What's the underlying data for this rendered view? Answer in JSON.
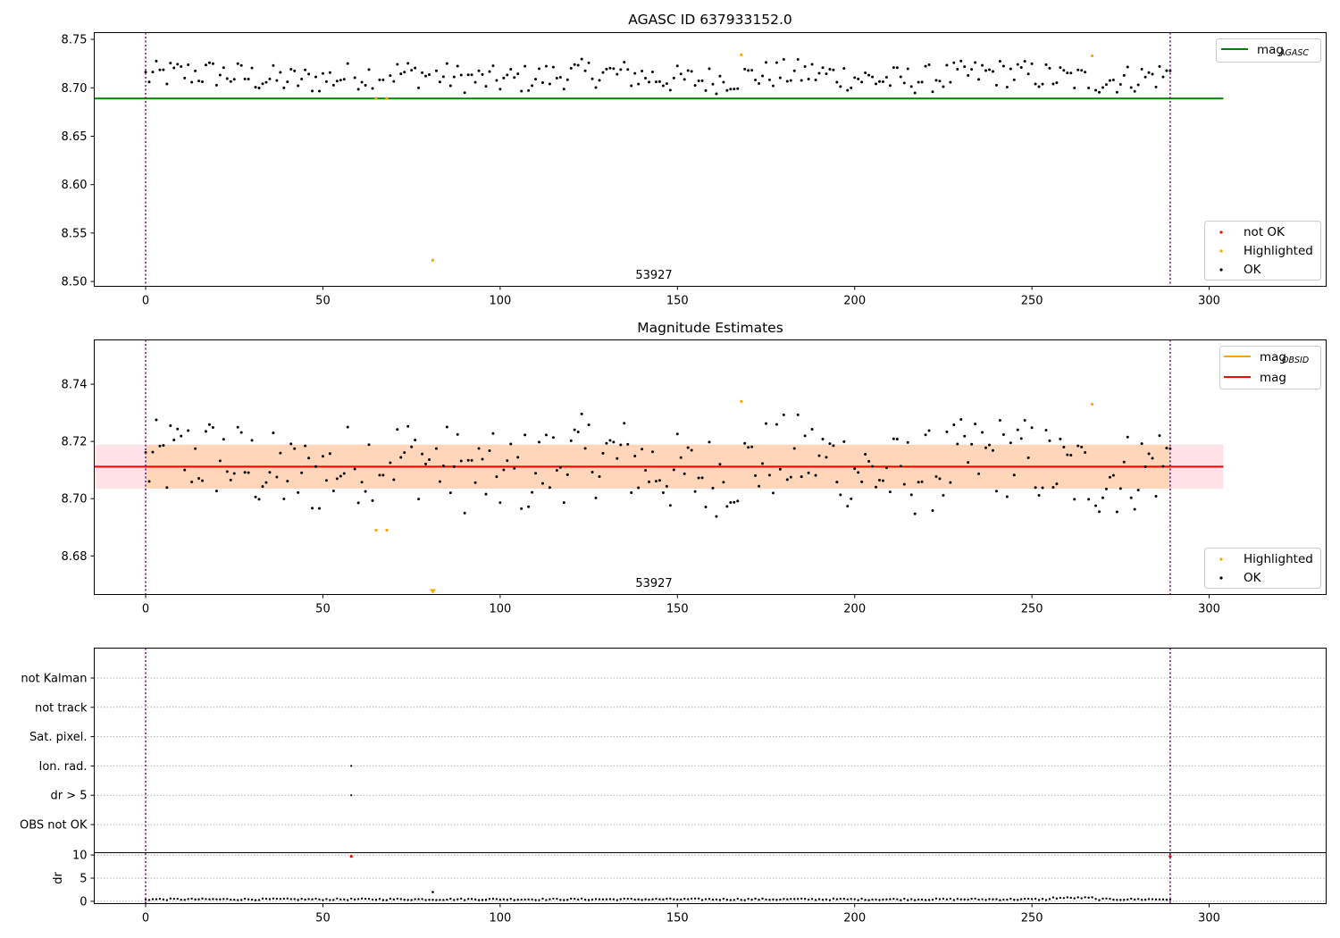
{
  "chart_data": [
    {
      "type": "scatter",
      "title": "AGASC ID 637933152.0",
      "annotation": "53927",
      "xlim": [
        -14.5,
        333
      ],
      "ylim": [
        8.495,
        8.757
      ],
      "xticks": [
        "0",
        "50",
        "100",
        "150",
        "200",
        "250",
        "300"
      ],
      "xtick_values": [
        0,
        50,
        100,
        150,
        200,
        250,
        300
      ],
      "yticks": [
        "8.50",
        "8.55",
        "8.60",
        "8.65",
        "8.70",
        "8.75"
      ],
      "ytick_values": [
        8.5,
        8.55,
        8.6,
        8.65,
        8.7,
        8.75
      ],
      "vlines_x": [
        0,
        289
      ],
      "mag_agasc": {
        "value": 8.689,
        "x_range": [
          -14.5,
          304
        ]
      },
      "legend_lines": [
        {
          "name": "mag",
          "sub": "AGASC",
          "color": "#008000"
        }
      ],
      "legend_points": [
        {
          "name": "not OK",
          "color": "#ff0000"
        },
        {
          "name": "Highlighted",
          "color": "#ffa500"
        },
        {
          "name": "OK",
          "color": "#000000"
        }
      ],
      "highlighted_points": [
        [
          65,
          8.689
        ],
        [
          68,
          8.689
        ],
        [
          81,
          8.522
        ],
        [
          168,
          8.734
        ],
        [
          267,
          8.733
        ]
      ]
    },
    {
      "type": "scatter",
      "title": "Magnitude Estimates",
      "annotation": "53927",
      "xlim": [
        -14.5,
        333
      ],
      "ylim": [
        8.6665,
        8.7555
      ],
      "xticks": [
        "0",
        "50",
        "100",
        "150",
        "200",
        "250",
        "300"
      ],
      "xtick_values": [
        0,
        50,
        100,
        150,
        200,
        250,
        300
      ],
      "yticks": [
        "8.68",
        "8.70",
        "8.72",
        "8.74"
      ],
      "ytick_values": [
        8.68,
        8.7,
        8.72,
        8.74
      ],
      "vlines_x": [
        0,
        289
      ],
      "mag_obsid": {
        "value": 8.7112,
        "x_range": [
          0,
          289
        ],
        "band": [
          8.7035,
          8.7189
        ]
      },
      "mag": {
        "value": 8.7112,
        "x_range": [
          -14.5,
          304
        ],
        "band": [
          8.7035,
          8.7189
        ]
      },
      "legend_lines": [
        {
          "name": "mag",
          "sub": "OBSID",
          "color": "#ffa500"
        },
        {
          "name": "mag",
          "sub": "",
          "color": "#ff0000"
        }
      ],
      "legend_points": [
        {
          "name": "Highlighted",
          "color": "#ffa500"
        },
        {
          "name": "OK",
          "color": "#000000"
        }
      ],
      "highlighted_points": [
        [
          65,
          8.689
        ],
        [
          68,
          8.689
        ],
        [
          168,
          8.734
        ],
        [
          267,
          8.733
        ]
      ],
      "offscale_marker": {
        "x": 81,
        "label": "below range"
      }
    },
    {
      "type": "scatter",
      "title": "",
      "xlim": [
        -14.5,
        333
      ],
      "xticks": [
        "0",
        "50",
        "100",
        "150",
        "200",
        "250",
        "300"
      ],
      "xtick_values": [
        0,
        50,
        100,
        150,
        200,
        250,
        300
      ],
      "flag_rows": [
        "not Kalman",
        "not track",
        "Sat. pixel.",
        "Ion. rad.",
        "dr > 5",
        "OBS not OK"
      ],
      "flag_points": [
        {
          "row": "Ion. rad.",
          "x": 58
        },
        {
          "row": "dr > 5",
          "x": 58
        }
      ],
      "dr_ylabel": "dr",
      "dr_yticks": [
        "0",
        "5",
        "10"
      ],
      "dr_ytick_values": [
        0,
        5,
        10
      ],
      "dr_ylim": [
        -0.5,
        10.5
      ],
      "dr_red_points": [
        [
          58,
          9.7
        ],
        [
          289,
          9.7
        ]
      ],
      "dr_outlier": [
        81,
        2.0
      ],
      "vlines_x": [
        0,
        289
      ]
    }
  ]
}
